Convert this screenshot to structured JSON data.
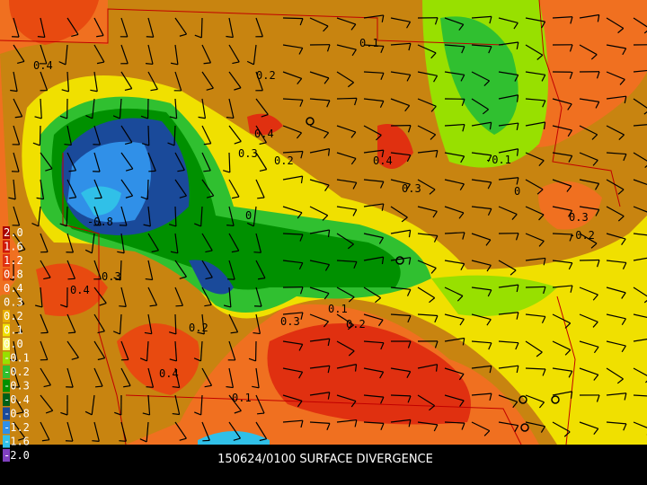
{
  "caption": "150624/0100 SURFACE DIVERGENCE",
  "legend": [
    {
      "label": "2.0",
      "color": "#a80000"
    },
    {
      "label": "1.6",
      "color": "#d01808"
    },
    {
      "label": "1.2",
      "color": "#e03010"
    },
    {
      "label": "0.8",
      "color": "#e84a10"
    },
    {
      "label": "0.4",
      "color": "#f07020"
    },
    {
      "label": "0.3",
      "color": "#c88410"
    },
    {
      "label": "0.2",
      "color": "#e8b000"
    },
    {
      "label": "0.1",
      "color": "#f0e000"
    },
    {
      "label": "0.0",
      "color": "#f8f870"
    },
    {
      "label": "-0.1",
      "color": "#98e000"
    },
    {
      "label": "-0.2",
      "color": "#30c030"
    },
    {
      "label": "-0.3",
      "color": "#009000"
    },
    {
      "label": "-0.4",
      "color": "#006018"
    },
    {
      "label": "-0.8",
      "color": "#1a4a9a"
    },
    {
      "label": "-1.2",
      "color": "#3090e8"
    },
    {
      "label": "-1.6",
      "color": "#30c0e8"
    },
    {
      "label": "-2.0",
      "color": "#8040c0"
    }
  ],
  "contour_labels": [
    "0.4",
    "0.2",
    "0.4",
    "0.3",
    "0.2",
    "0.4",
    "0.3",
    "0.1",
    "0.3",
    "-0.2",
    "0",
    "-0.8",
    "0.4",
    "0.3",
    "0.2",
    "0.1",
    "0.4",
    "0.3",
    "0.2",
    "0.1",
    "-0.1",
    "0"
  ]
}
